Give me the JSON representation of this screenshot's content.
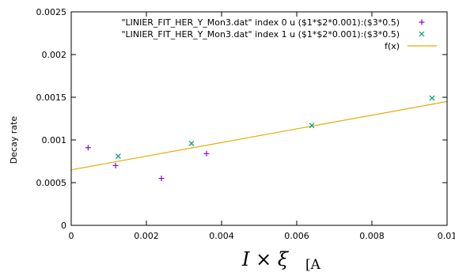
{
  "chart_data": {
    "type": "scatter",
    "title": "",
    "xlabel_symbol": "I × ξ",
    "xlabel_unit": "[A",
    "ylabel": "Decay rate",
    "xlim": [
      0,
      0.01
    ],
    "ylim": [
      0,
      0.0025
    ],
    "x_ticks": [
      "0",
      "0.002",
      "0.004",
      "0.006",
      "0.008",
      "0.01"
    ],
    "y_ticks": [
      "0",
      "0.0005",
      "0.001",
      "0.0015",
      "0.002",
      "0.0025"
    ],
    "x_tick_values": [
      0,
      0.002,
      0.004,
      0.006,
      0.008,
      0.01
    ],
    "y_tick_values": [
      0,
      0.0005,
      0.001,
      0.0015,
      0.002,
      0.0025
    ],
    "grid": false,
    "legend_position": "top-right",
    "series": [
      {
        "name": "\"LINIER_FIT_HER_Y_Mon3.dat\" index 0 u ($1*$2*0.001):($3*0.5)",
        "marker": "plus",
        "color": "#9400d3",
        "x": [
          0.00045,
          0.00118,
          0.0024,
          0.0036
        ],
        "y": [
          0.00091,
          0.0007,
          0.00055,
          0.00084
        ]
      },
      {
        "name": "\"LINIER_FIT_HER_Y_Mon3.dat\" index 1 u ($1*$2*0.001):($3*0.5)",
        "marker": "cross",
        "color": "#009e73",
        "x": [
          0.00125,
          0.0032,
          0.0064,
          0.0096
        ],
        "y": [
          0.00081,
          0.00096,
          0.00117,
          0.00149
        ]
      },
      {
        "name": "f(x)",
        "marker": "line",
        "color": "#e6ab02",
        "x": [
          0,
          0.01
        ],
        "y": [
          0.00065,
          0.00145
        ]
      }
    ]
  }
}
